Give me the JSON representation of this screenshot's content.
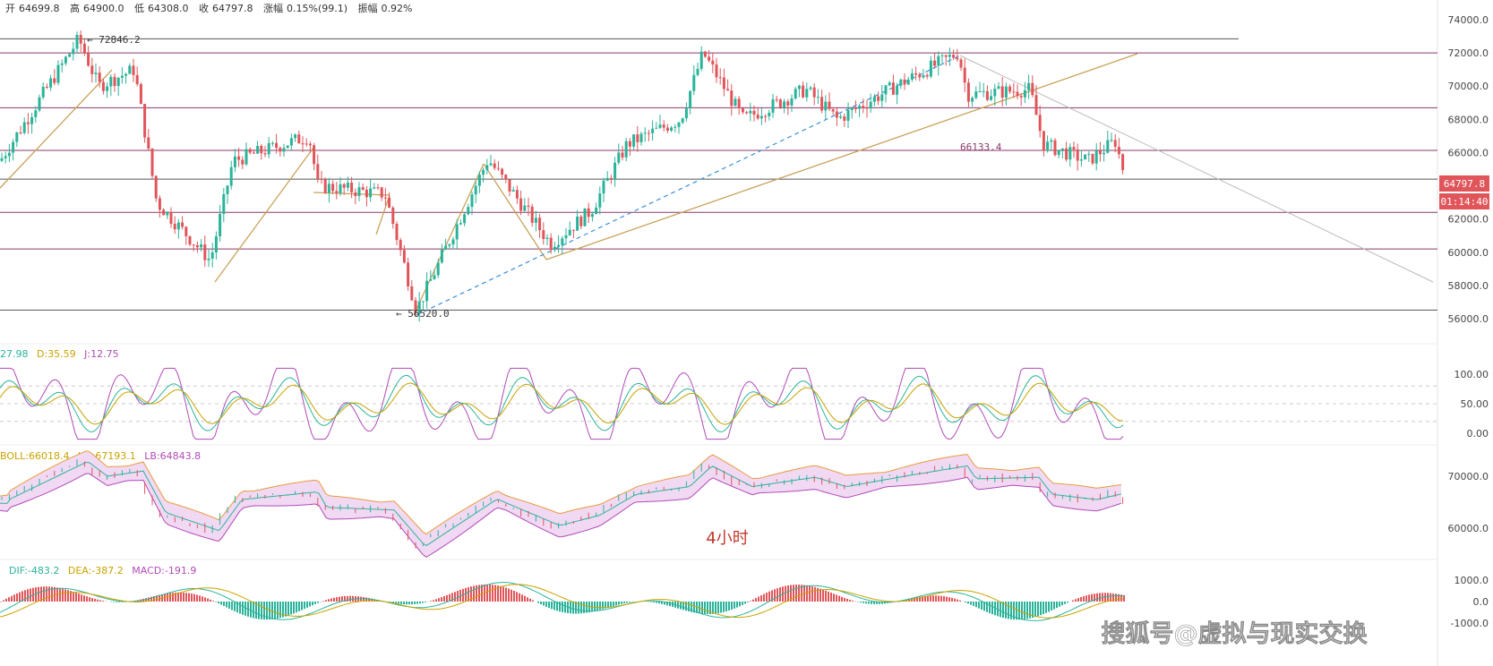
{
  "header": {
    "open_label": "开",
    "open": "64699.8",
    "high_label": "高",
    "high": "64900.0",
    "low_label": "低",
    "low": "64308.0",
    "close_label": "收",
    "close": "64797.8",
    "change_label": "涨幅",
    "change": "0.15%(99.1)",
    "amplitude_label": "振幅",
    "amplitude": "0.92%"
  },
  "price_pane": {
    "y_ticks": [
      "74000.0",
      "72000.0",
      "70000.0",
      "68000.0",
      "66000.0",
      "62000.0",
      "60000.0",
      "58000.0",
      "56000.0"
    ],
    "high_annotation": "72846.2",
    "low_annotation": "56520.0",
    "level_annotation": "66133.4",
    "last_price_badge": "64797.8",
    "countdown_badge": "01:14:40",
    "last_price": 64797.8,
    "horizontal_levels": [
      72846.2,
      72000,
      68700,
      66133.4,
      64400,
      62400,
      60200,
      56520
    ],
    "colors": {
      "up": "#2bb39a",
      "down": "#e0555a",
      "level": "#8a3a6a",
      "trend": "#c9a25a",
      "dash": "#3a8fd9",
      "badge": "#e0555a"
    }
  },
  "kdj_pane": {
    "legend_k": "27.98",
    "legend_d": "D:35.59",
    "legend_j": "J:12.75",
    "y_ticks": [
      "100.00",
      "50.00",
      "0.00"
    ]
  },
  "boll_pane": {
    "legend_mid": "BOLL:66018.4",
    "legend_ub": "UB:67193.1",
    "legend_lb": "LB:64843.8",
    "y_ticks": [
      "70000.0",
      "60000.0"
    ]
  },
  "macd_pane": {
    "legend_dif": "DIF:-483.2",
    "legend_dea": "DEA:-387.2",
    "legend_macd": "MACD:-191.9",
    "y_ticks": [
      "1000.0",
      "0.0",
      "-1000.0"
    ]
  },
  "timeframe_label": "4小时",
  "watermark": "搜狐号@虚拟与现实交换",
  "chart_data": {
    "type": "candlestick",
    "timeframe": "4小时",
    "ylim": [
      56000,
      74000
    ],
    "last_bar": {
      "open": 64699.8,
      "high": 64900.0,
      "low": 64308.0,
      "close": 64797.8
    },
    "swing_points": [
      72846.2,
      59500,
      67000,
      56520.0,
      65600,
      60500,
      72000,
      69800,
      64797.8
    ],
    "annotations": [
      {
        "label": "72846.2",
        "value": 72846.2
      },
      {
        "label": "56520.0",
        "value": 56520.0
      },
      {
        "label": "66133.4",
        "value": 66133.4
      }
    ],
    "indicators": {
      "KDJ": {
        "D": 35.59,
        "J": 12.75
      },
      "BOLL": {
        "BOLL": 66018.4,
        "UB": 67193.1,
        "LB": 64843.8
      },
      "MACD": {
        "DIF": -483.2,
        "DEA": -387.2,
        "MACD": -191.9
      }
    }
  }
}
